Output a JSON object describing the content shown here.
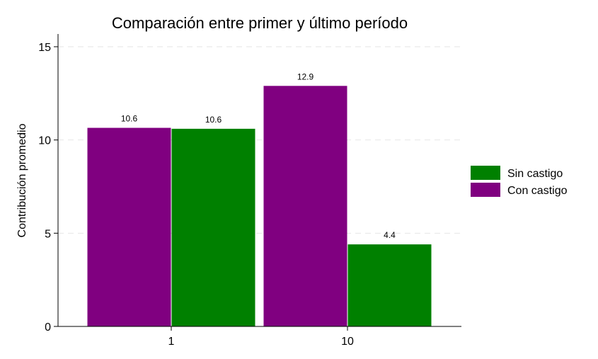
{
  "chart_data": {
    "type": "bar",
    "title": "Comparación entre primer y último período",
    "xlabel": "",
    "ylabel": "Contribución promedio",
    "categories": [
      "1",
      "10"
    ],
    "series": [
      {
        "name": "Con castigo",
        "color": "#800080",
        "values": [
          10.65,
          12.9
        ],
        "labels": [
          "10.6",
          "12.9"
        ]
      },
      {
        "name": "Sin castigo",
        "color": "#008000",
        "values": [
          10.6,
          4.4
        ],
        "labels": [
          "10.6",
          "4.4"
        ]
      }
    ],
    "legend_order": [
      "Sin castigo",
      "Con castigo"
    ],
    "legend_position": "right",
    "ylim": [
      0,
      15
    ],
    "yticks": [
      0,
      5,
      10,
      15
    ],
    "grid": "horizontal-dashed"
  }
}
